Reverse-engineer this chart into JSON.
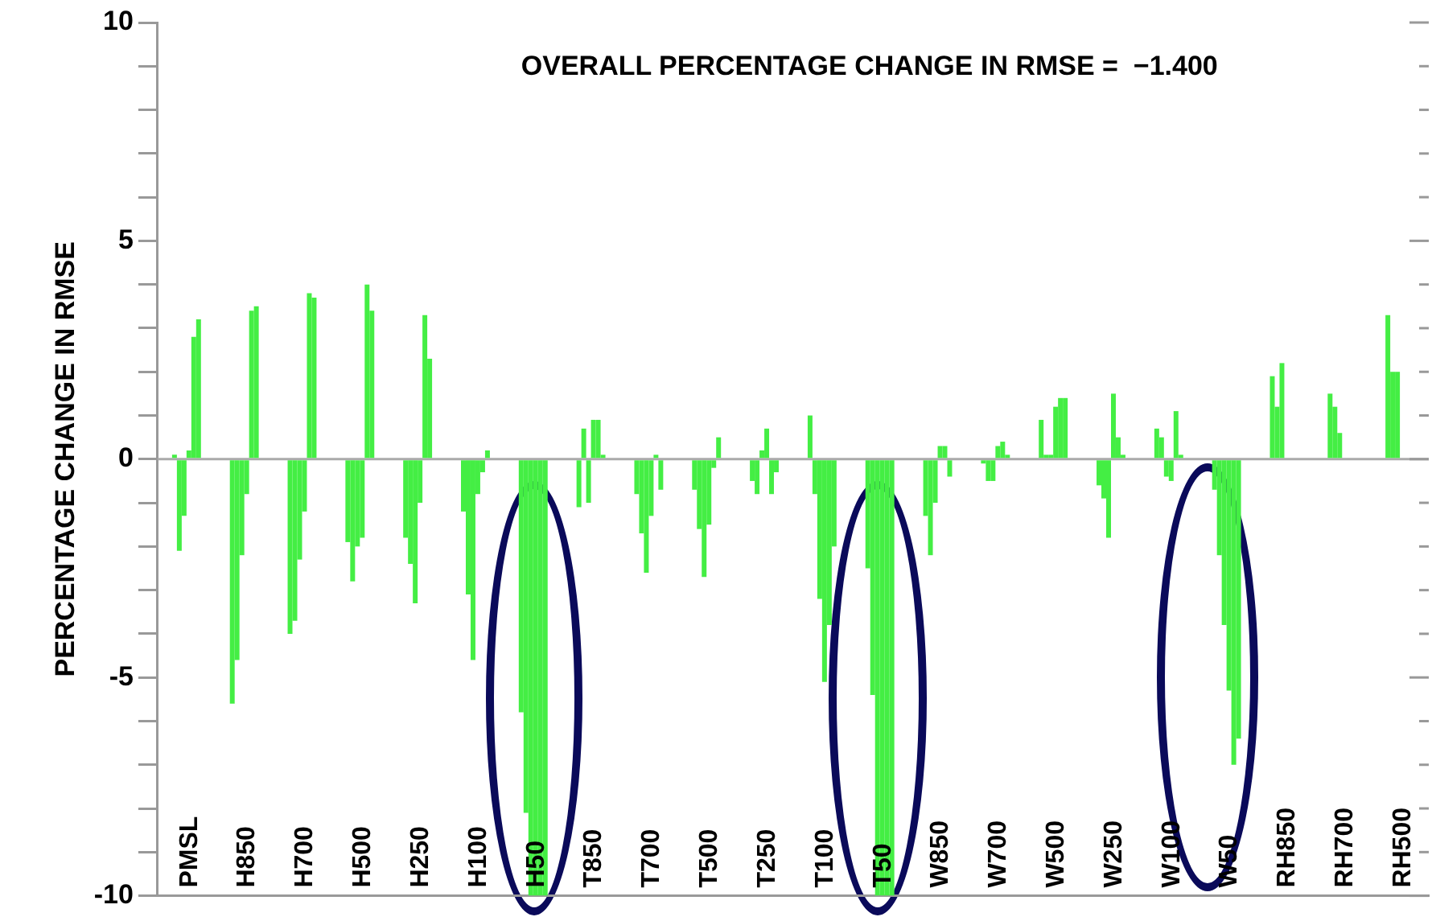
{
  "chart_data": {
    "type": "bar",
    "title": "OVERALL PERCENTAGE CHANGE IN RMSE =  −1.400",
    "ylabel": "PERCENTAGE CHANGE IN RMSE",
    "categories": [
      "PMSL",
      "H850",
      "H700",
      "H500",
      "H250",
      "H100",
      "H50",
      "T850",
      "T700",
      "T500",
      "T250",
      "T100",
      "T50",
      "W850",
      "W700",
      "W500",
      "W250",
      "W100",
      "W50",
      "RH850",
      "RH700",
      "RH500"
    ],
    "series": [
      {
        "color": "#44ee44",
        "values": [
          0.1,
          -5.6,
          -4.0,
          -1.9,
          -1.8,
          -1.2,
          -5.8,
          -1.1,
          -0.8,
          -0.7,
          -0.5,
          1.0,
          -2.5,
          -1.3,
          -0.1,
          0.9,
          -0.6,
          0.7,
          -0.7,
          1.9,
          1.5,
          3.3
        ]
      },
      {
        "color": "#44ee44",
        "values": [
          -2.1,
          -4.6,
          -3.7,
          -2.8,
          -2.4,
          -3.1,
          -8.1,
          0.7,
          -1.7,
          -1.6,
          -0.8,
          -0.8,
          -5.4,
          -2.2,
          -0.5,
          0.1,
          -0.9,
          0.5,
          -2.2,
          1.2,
          1.2,
          2.0
        ]
      },
      {
        "color": "#44ee44",
        "values": [
          -1.3,
          -2.2,
          -2.3,
          -2.0,
          -3.3,
          -4.6,
          -10,
          -1.0,
          -2.6,
          -2.7,
          0.2,
          -3.2,
          -10,
          -1.0,
          -0.5,
          0.1,
          -1.8,
          -0.4,
          -3.8,
          2.2,
          0.6,
          2.0
        ]
      },
      {
        "color": "#44ee44",
        "values": [
          0.2,
          -0.8,
          -1.2,
          -1.8,
          -1.0,
          -0.8,
          -10,
          0.9,
          -1.3,
          -1.5,
          0.7,
          -5.1,
          -10,
          0.3,
          0.3,
          1.2,
          1.5,
          -0.5,
          -5.3,
          null,
          null,
          null
        ]
      },
      {
        "color": "#44ee44",
        "values": [
          2.8,
          3.4,
          3.8,
          4.0,
          3.3,
          -0.3,
          -10,
          0.9,
          0.1,
          -0.2,
          -0.8,
          -3.8,
          -10,
          0.3,
          0.4,
          1.4,
          0.5,
          1.1,
          -7.0,
          null,
          null,
          null
        ]
      },
      {
        "color": "#44ee44",
        "values": [
          3.2,
          3.5,
          3.7,
          3.4,
          2.3,
          0.2,
          -10,
          0.1,
          -0.7,
          0.5,
          -0.3,
          -2.0,
          -10,
          -0.4,
          0.1,
          1.4,
          0.1,
          0.1,
          -6.4,
          null,
          null,
          null
        ]
      }
    ],
    "ylim": [
      -10,
      10
    ],
    "yticks": [
      -10,
      {
        "value": -9,
        "label": null
      },
      {
        "value": -8,
        "label": null
      },
      {
        "value": -7,
        "label": null
      },
      {
        "value": -6,
        "label": null
      },
      -5,
      {
        "value": -4,
        "label": null
      },
      {
        "value": -3,
        "label": null
      },
      {
        "value": -2,
        "label": null
      },
      {
        "value": -1,
        "label": null
      },
      0,
      {
        "value": 1,
        "label": null
      },
      {
        "value": 2,
        "label": null
      },
      {
        "value": 3,
        "label": null
      },
      {
        "value": 4,
        "label": null
      },
      5,
      {
        "value": 6,
        "label": null
      },
      {
        "value": 7,
        "label": null
      },
      {
        "value": 8,
        "label": null
      },
      {
        "value": 9,
        "label": null
      },
      10
    ],
    "ref_lines": [
      {
        "axis": "y",
        "value": 0,
        "color": "#aaaaaa"
      }
    ]
  }
}
